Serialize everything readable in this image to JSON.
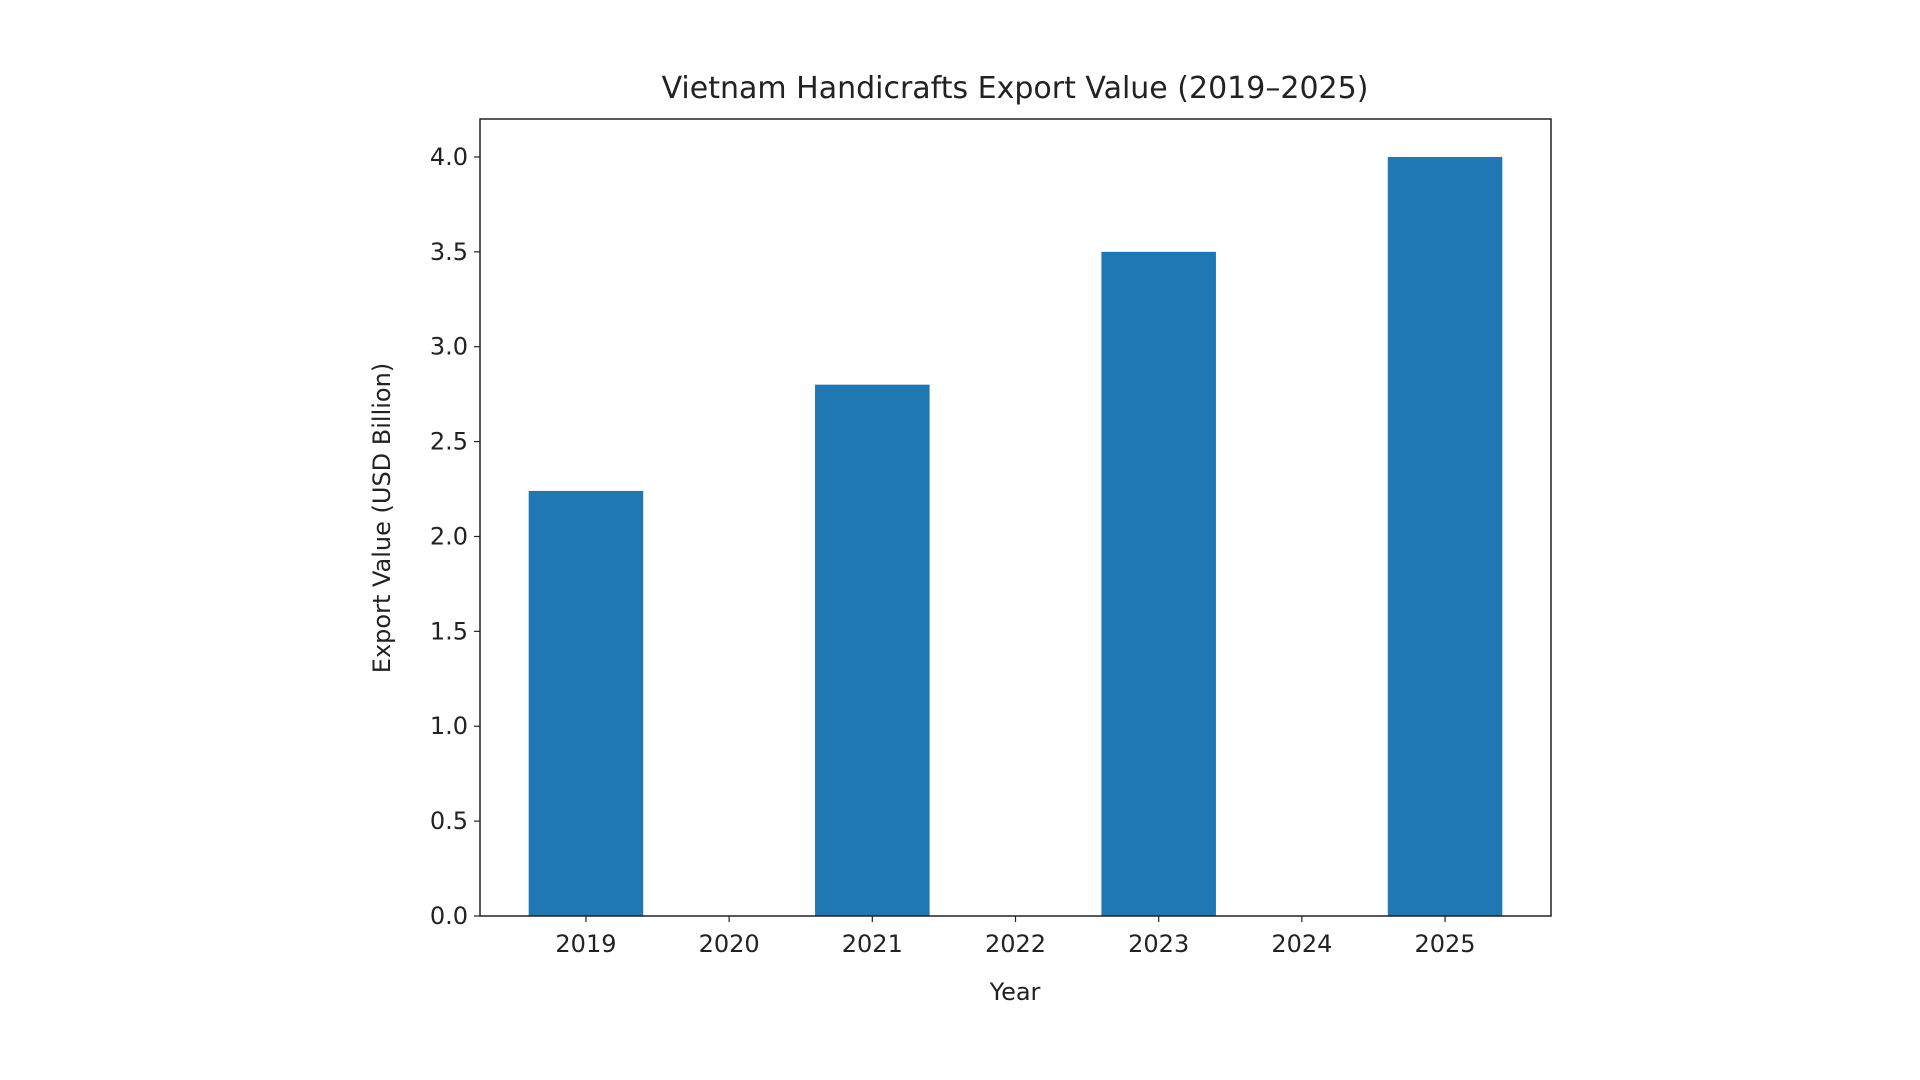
{
  "chart_data": {
    "type": "bar",
    "title": "Vietnam Handicrafts Export Value (2019–2025)",
    "x_label": "Year",
    "y_label": "Export Value (USD Billion)",
    "x": [
      2019,
      2021,
      2023,
      2025
    ],
    "values": [
      2.24,
      2.8,
      3.5,
      4.0
    ],
    "color": "#1f77b4",
    "xlim": [
      2018.26,
      2025.74
    ],
    "xticks": [
      2019,
      2020,
      2021,
      2022,
      2023,
      2024,
      2025
    ],
    "ylim": [
      0,
      4.2
    ],
    "yticks": [
      {
        "value": 0,
        "label": "0.0"
      },
      {
        "value": 0.5,
        "label": "0.5"
      },
      {
        "value": 1,
        "label": "1.0"
      },
      {
        "value": 1.5,
        "label": "1.5"
      },
      {
        "value": 2,
        "label": "2.0"
      },
      {
        "value": 2.5,
        "label": "2.5"
      },
      {
        "value": 3,
        "label": "3.0"
      },
      {
        "value": 3.5,
        "label": "3.5"
      },
      {
        "value": 4,
        "label": "4.0"
      }
    ],
    "grid": false
  }
}
